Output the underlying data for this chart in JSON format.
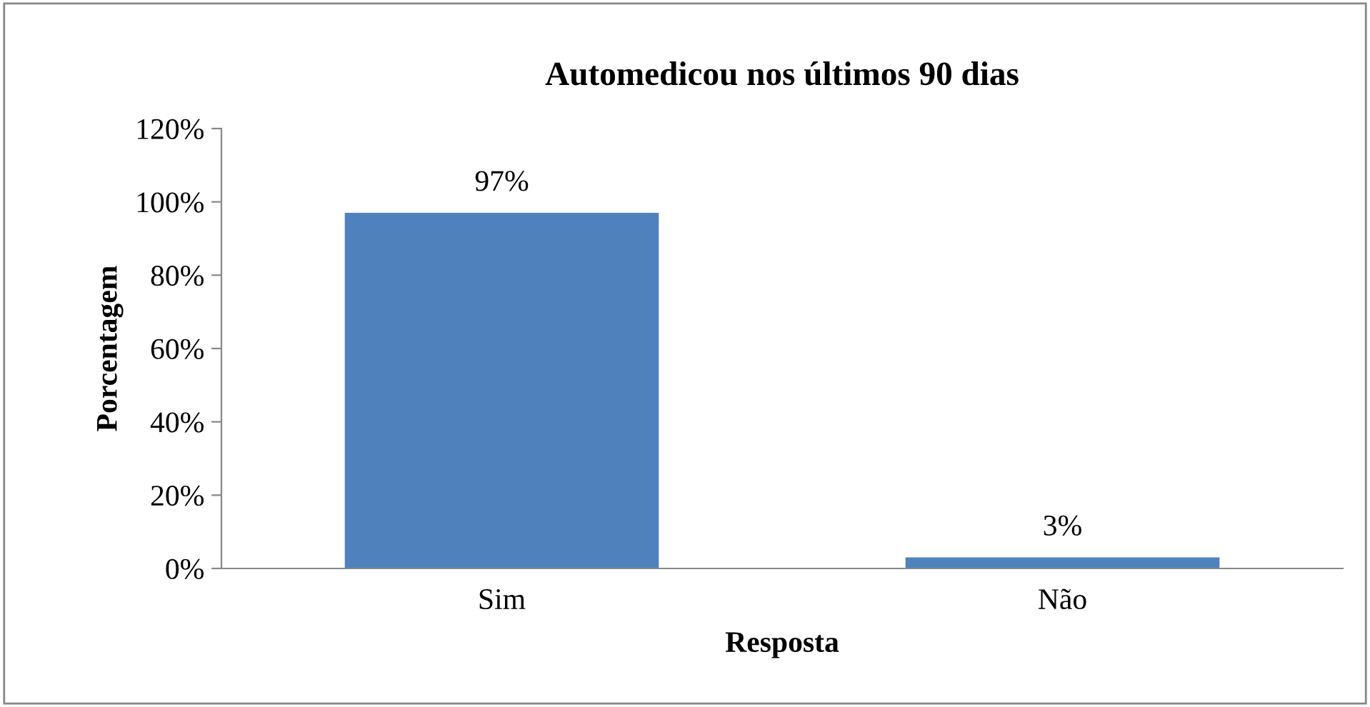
{
  "chart_data": {
    "type": "bar",
    "title": "Automedicou nos últimos 90 dias",
    "xlabel": "Resposta",
    "ylabel": "Porcentagem",
    "categories": [
      "Sim",
      "Não"
    ],
    "values": [
      97,
      3
    ],
    "value_labels": [
      "97%",
      "3%"
    ],
    "color": "#4f81bd",
    "ylim": [
      0,
      120
    ],
    "yticks": [
      {
        "value": 0,
        "label": "0%"
      },
      {
        "value": 20,
        "label": "20%"
      },
      {
        "value": 40,
        "label": "40%"
      },
      {
        "value": 60,
        "label": "60%"
      },
      {
        "value": 80,
        "label": "80%"
      },
      {
        "value": 100,
        "label": "100%"
      },
      {
        "value": 120,
        "label": "120%"
      }
    ],
    "grid": false,
    "legend": false
  }
}
